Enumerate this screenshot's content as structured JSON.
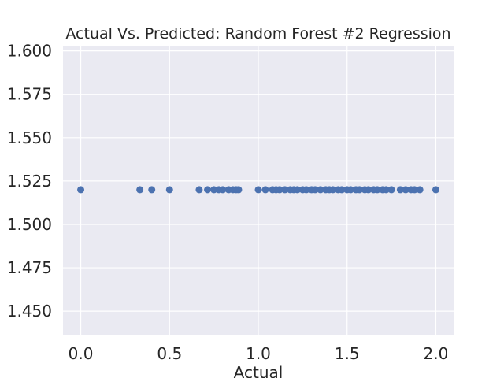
{
  "chart_data": {
    "type": "scatter",
    "title": "Actual Vs. Predicted: Random Forest #2 Regression",
    "xlabel": "Actual",
    "ylabel": "",
    "xlim": [
      -0.1,
      2.1
    ],
    "ylim": [
      1.436,
      1.603
    ],
    "xticks": [
      "0.0",
      "0.5",
      "1.0",
      "1.5",
      "2.0"
    ],
    "yticks": [
      "1.450",
      "1.475",
      "1.500",
      "1.525",
      "1.550",
      "1.575",
      "1.600"
    ],
    "grid": true,
    "point_color": "#4c72b0",
    "background_color": "#eaeaf2",
    "grid_color": "#ffffff",
    "series": [
      {
        "x": [
          0.0,
          0.333,
          0.4,
          0.5,
          0.667,
          0.714,
          0.75,
          0.778,
          0.8,
          0.833,
          0.857,
          0.875,
          0.889,
          1.0,
          1.04,
          1.08,
          1.1,
          1.12,
          1.15,
          1.18,
          1.2,
          1.22,
          1.25,
          1.27,
          1.3,
          1.32,
          1.35,
          1.38,
          1.4,
          1.42,
          1.45,
          1.47,
          1.5,
          1.52,
          1.55,
          1.57,
          1.6,
          1.62,
          1.65,
          1.67,
          1.7,
          1.72,
          1.75,
          1.8,
          1.83,
          1.86,
          1.88,
          1.91,
          2.0
        ],
        "y": [
          1.52,
          1.52,
          1.52,
          1.52,
          1.52,
          1.52,
          1.52,
          1.52,
          1.52,
          1.52,
          1.52,
          1.52,
          1.52,
          1.52,
          1.52,
          1.52,
          1.52,
          1.52,
          1.52,
          1.52,
          1.52,
          1.52,
          1.52,
          1.52,
          1.52,
          1.52,
          1.52,
          1.52,
          1.52,
          1.52,
          1.52,
          1.52,
          1.52,
          1.52,
          1.52,
          1.52,
          1.52,
          1.52,
          1.52,
          1.52,
          1.52,
          1.52,
          1.52,
          1.52,
          1.52,
          1.52,
          1.52,
          1.52,
          1.52
        ]
      }
    ]
  }
}
